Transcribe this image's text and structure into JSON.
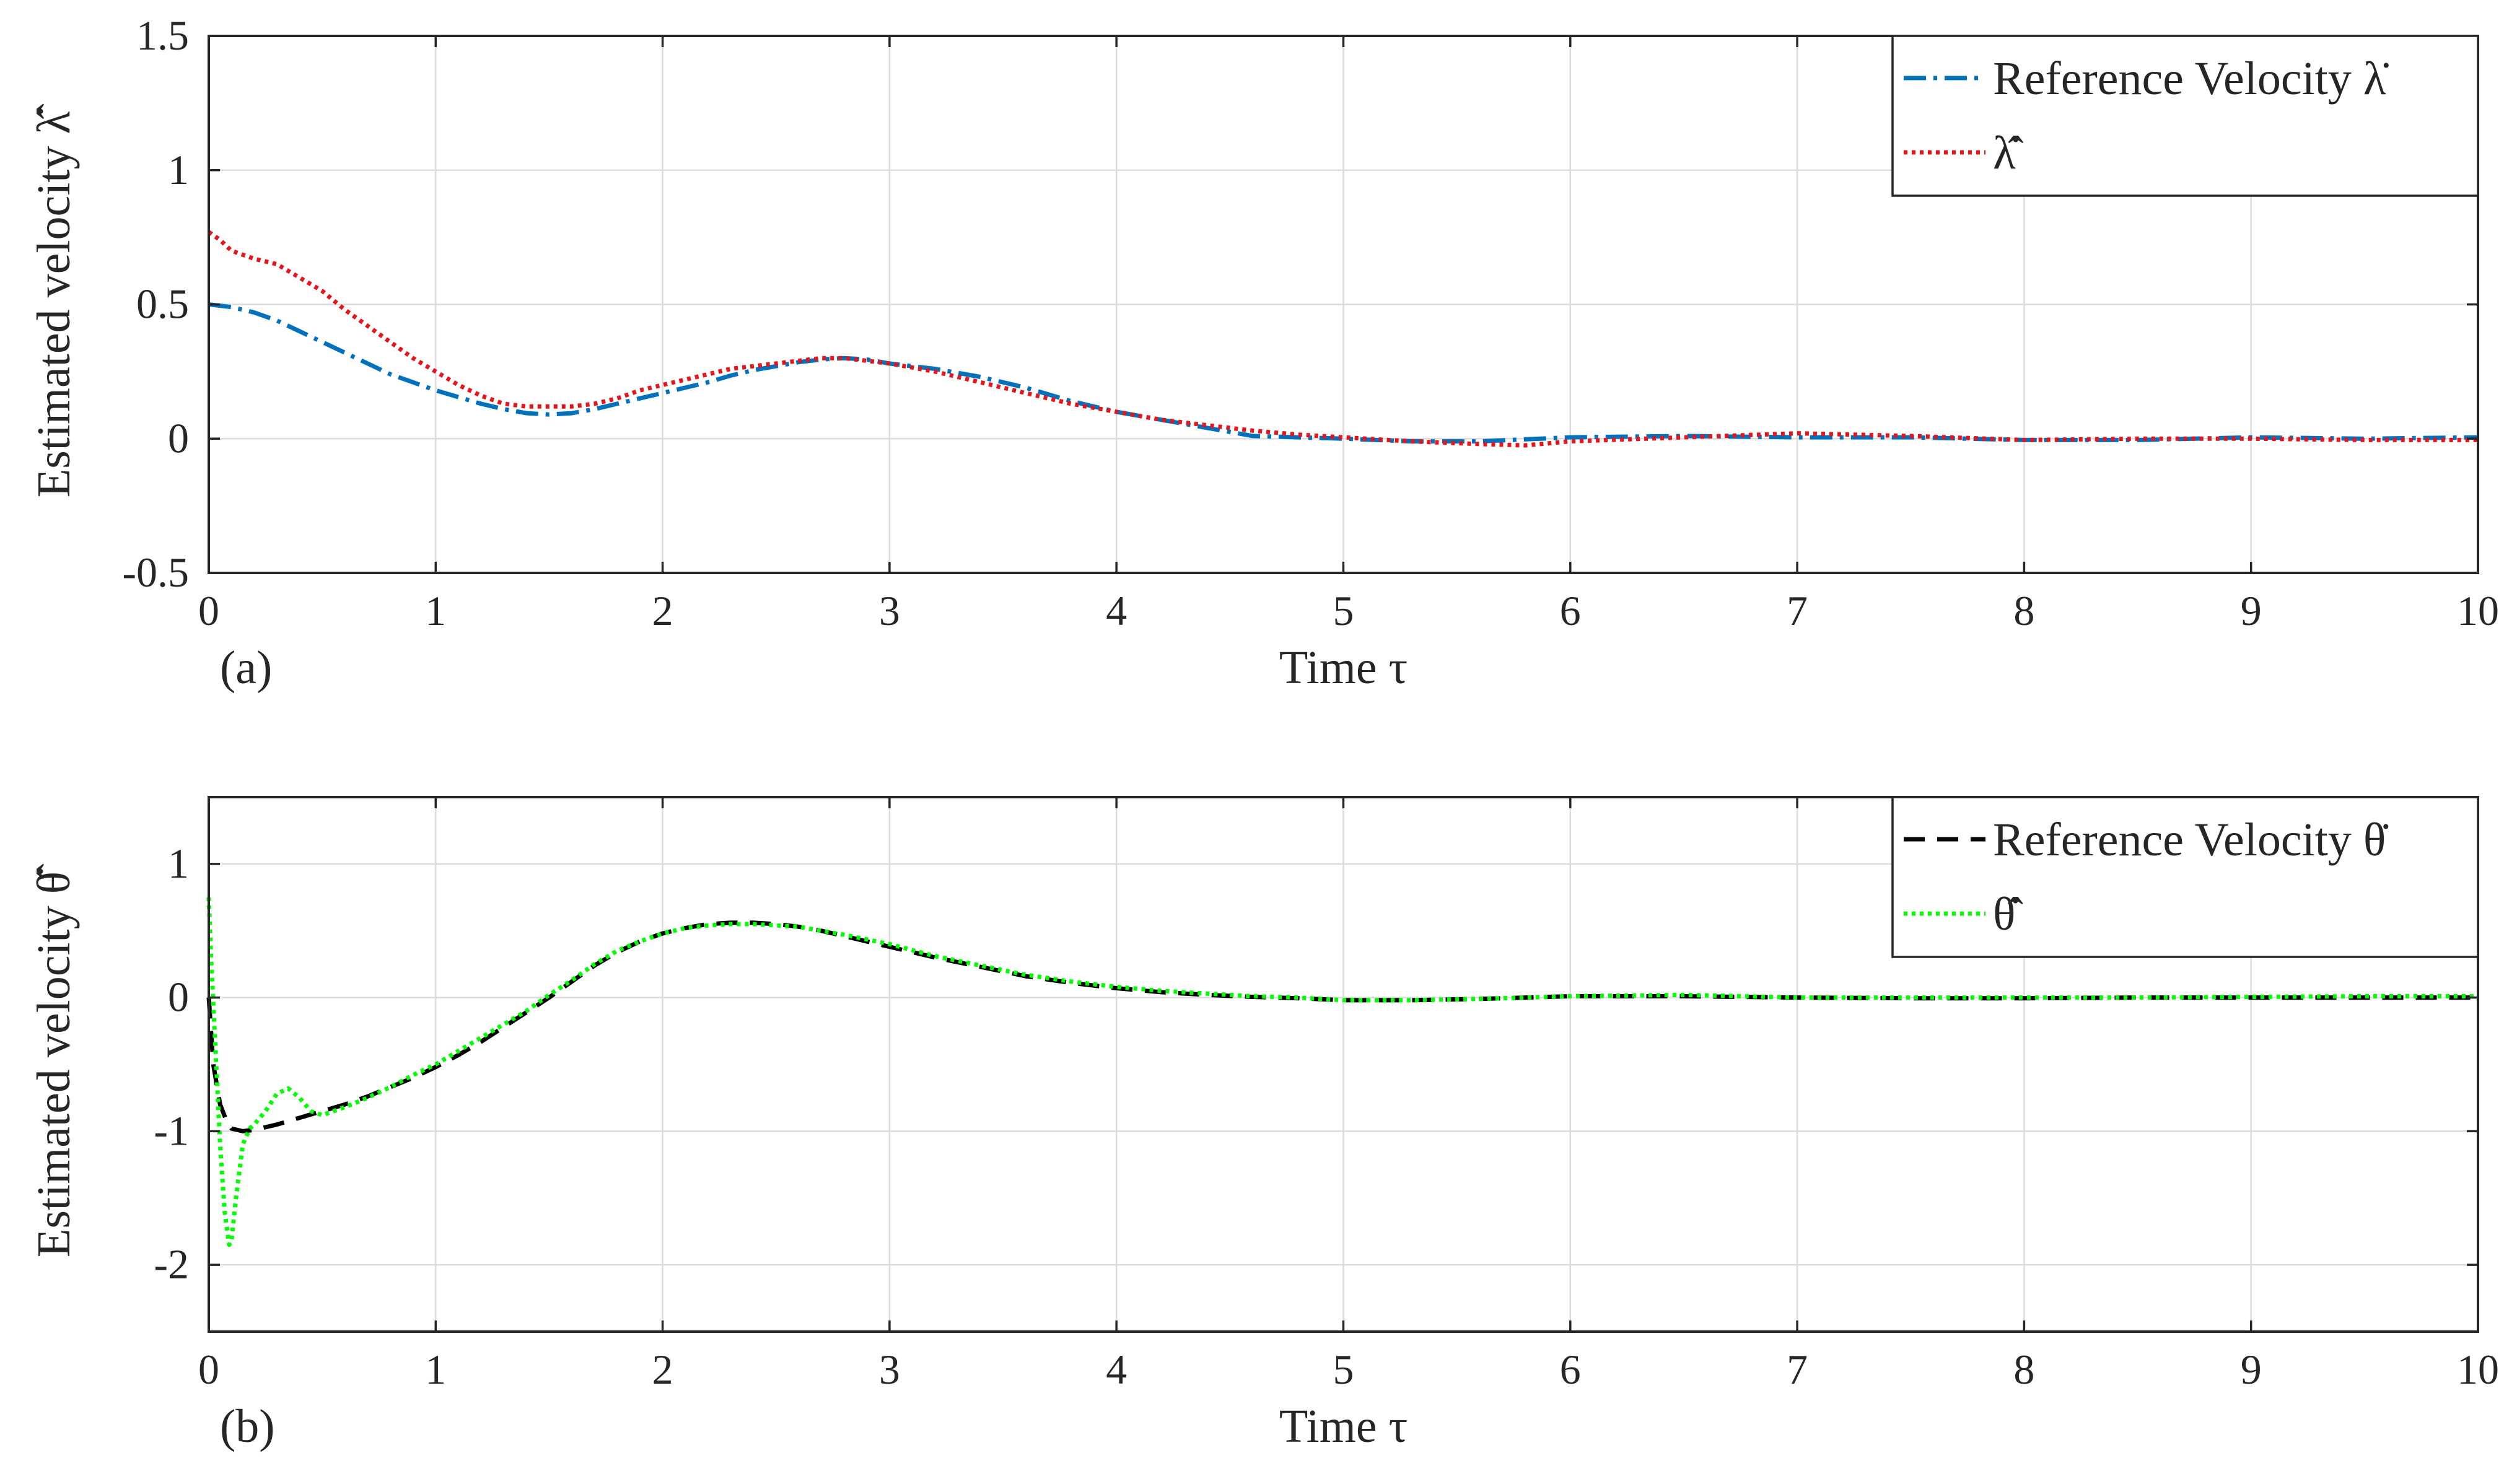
{
  "chart_data": [
    {
      "type": "line",
      "panel_label": "(a)",
      "xlabel": "Time τ",
      "ylabel": "Estimated velocity λ̂̇",
      "xlim": [
        0,
        10
      ],
      "ylim": [
        -0.5,
        1.5
      ],
      "xticks": [
        0,
        1,
        2,
        3,
        4,
        5,
        6,
        7,
        8,
        9,
        10
      ],
      "yticks": [
        -0.5,
        0,
        0.5,
        1,
        1.5
      ],
      "ytick_labels": [
        "-0.5",
        "0",
        "0.5",
        "1",
        "1.5"
      ],
      "grid": true,
      "legend_position": "top-right",
      "series": [
        {
          "name": "Reference Velocity λ̇",
          "color": "#0072BD",
          "line_style": "dash-dot",
          "x": [
            0,
            0.1,
            0.2,
            0.3,
            0.4,
            0.5,
            0.6,
            0.7,
            0.8,
            0.9,
            1.0,
            1.1,
            1.2,
            1.3,
            1.4,
            1.5,
            1.6,
            1.7,
            1.8,
            1.9,
            2.0,
            2.1,
            2.2,
            2.3,
            2.4,
            2.5,
            2.6,
            2.7,
            2.8,
            2.9,
            3.0,
            3.2,
            3.4,
            3.6,
            3.8,
            4.0,
            4.2,
            4.4,
            4.6,
            4.8,
            5.0,
            5.3,
            5.6,
            6.0,
            6.5,
            7.0,
            7.5,
            8.0,
            8.5,
            9.0,
            9.5,
            10.0
          ],
          "y": [
            0.5,
            0.49,
            0.47,
            0.44,
            0.4,
            0.36,
            0.32,
            0.28,
            0.24,
            0.21,
            0.18,
            0.155,
            0.13,
            0.11,
            0.095,
            0.09,
            0.095,
            0.11,
            0.13,
            0.15,
            0.17,
            0.19,
            0.21,
            0.235,
            0.255,
            0.27,
            0.285,
            0.295,
            0.3,
            0.295,
            0.28,
            0.26,
            0.23,
            0.19,
            0.14,
            0.1,
            0.07,
            0.04,
            0.01,
            0.005,
            0.0,
            -0.01,
            -0.01,
            0.005,
            0.01,
            0.005,
            0.005,
            -0.005,
            -0.005,
            0.005,
            0.0,
            0.005
          ]
        },
        {
          "name": "λ̂̇",
          "color": "#E8141C",
          "line_style": "dotted",
          "x": [
            0,
            0.05,
            0.1,
            0.2,
            0.3,
            0.4,
            0.5,
            0.6,
            0.7,
            0.8,
            0.9,
            1.0,
            1.1,
            1.2,
            1.3,
            1.4,
            1.5,
            1.6,
            1.7,
            1.8,
            1.9,
            2.0,
            2.1,
            2.2,
            2.3,
            2.4,
            2.5,
            2.6,
            2.7,
            2.8,
            2.9,
            3.0,
            3.2,
            3.4,
            3.6,
            3.8,
            4.0,
            4.2,
            4.4,
            4.6,
            4.8,
            5.0,
            5.3,
            5.6,
            5.8,
            6.0,
            6.5,
            7.0,
            7.5,
            8.0,
            8.5,
            9.0,
            9.5,
            10.0
          ],
          "y": [
            0.77,
            0.74,
            0.7,
            0.67,
            0.65,
            0.6,
            0.55,
            0.48,
            0.42,
            0.36,
            0.3,
            0.25,
            0.2,
            0.16,
            0.13,
            0.12,
            0.12,
            0.12,
            0.13,
            0.15,
            0.18,
            0.2,
            0.22,
            0.24,
            0.26,
            0.27,
            0.28,
            0.29,
            0.3,
            0.3,
            0.29,
            0.28,
            0.25,
            0.21,
            0.17,
            0.13,
            0.1,
            0.07,
            0.05,
            0.03,
            0.015,
            0.005,
            -0.01,
            -0.02,
            -0.025,
            -0.01,
            0.005,
            0.02,
            0.01,
            -0.005,
            0.0,
            0.0,
            -0.005,
            -0.005
          ]
        }
      ]
    },
    {
      "type": "line",
      "panel_label": "(b)",
      "xlabel": "Time τ",
      "ylabel": "Estimated velocity θ̂̇",
      "xlim": [
        0,
        10
      ],
      "ylim": [
        -2.5,
        1.5
      ],
      "xticks": [
        0,
        1,
        2,
        3,
        4,
        5,
        6,
        7,
        8,
        9,
        10
      ],
      "yticks": [
        -2,
        -1,
        0,
        1
      ],
      "ytick_labels": [
        "-2",
        "-1",
        "0",
        "1"
      ],
      "grid": true,
      "legend_position": "top-right",
      "series": [
        {
          "name": "Reference Velocity θ̇",
          "color": "#000000",
          "line_style": "dashed",
          "x": [
            0,
            0.02,
            0.05,
            0.08,
            0.1,
            0.15,
            0.2,
            0.3,
            0.4,
            0.5,
            0.6,
            0.7,
            0.8,
            0.9,
            1.0,
            1.1,
            1.2,
            1.3,
            1.4,
            1.5,
            1.6,
            1.7,
            1.8,
            1.9,
            2.0,
            2.1,
            2.2,
            2.3,
            2.4,
            2.5,
            2.6,
            2.7,
            2.8,
            3.0,
            3.2,
            3.4,
            3.6,
            3.8,
            4.0,
            4.2,
            4.4,
            4.6,
            4.8,
            5.0,
            5.3,
            5.6,
            6.0,
            6.5,
            7.0,
            7.5,
            8.0,
            8.5,
            9.0,
            9.5,
            10.0
          ],
          "y": [
            0.0,
            -0.5,
            -0.8,
            -0.93,
            -0.98,
            -1.0,
            -0.99,
            -0.95,
            -0.9,
            -0.85,
            -0.8,
            -0.74,
            -0.67,
            -0.6,
            -0.52,
            -0.43,
            -0.33,
            -0.22,
            -0.11,
            0.0,
            0.12,
            0.24,
            0.34,
            0.42,
            0.48,
            0.52,
            0.55,
            0.56,
            0.56,
            0.55,
            0.53,
            0.5,
            0.46,
            0.38,
            0.3,
            0.23,
            0.16,
            0.11,
            0.07,
            0.04,
            0.02,
            0.005,
            -0.005,
            -0.02,
            -0.02,
            -0.01,
            0.01,
            0.01,
            0.0,
            -0.005,
            -0.005,
            0.0,
            0.0,
            0.0,
            0.0
          ]
        },
        {
          "name": "θ̂̇",
          "color": "#00FF00",
          "line_style": "dotted",
          "x": [
            0,
            0.01,
            0.03,
            0.05,
            0.07,
            0.09,
            0.1,
            0.12,
            0.15,
            0.18,
            0.2,
            0.25,
            0.3,
            0.35,
            0.4,
            0.45,
            0.5,
            0.6,
            0.7,
            0.8,
            0.9,
            1.0,
            1.1,
            1.2,
            1.3,
            1.4,
            1.5,
            1.6,
            1.7,
            1.8,
            1.9,
            2.0,
            2.1,
            2.2,
            2.3,
            2.4,
            2.5,
            2.6,
            2.7,
            2.8,
            3.0,
            3.2,
            3.4,
            3.6,
            3.8,
            4.0,
            4.2,
            4.4,
            4.6,
            4.8,
            5.0,
            5.3,
            5.6,
            6.0,
            6.5,
            7.0,
            7.5,
            8.0,
            8.5,
            9.0,
            9.5,
            10.0
          ],
          "y": [
            0.75,
            0.3,
            -0.4,
            -1.1,
            -1.6,
            -1.85,
            -1.82,
            -1.5,
            -1.1,
            -0.98,
            -0.95,
            -0.85,
            -0.72,
            -0.68,
            -0.75,
            -0.85,
            -0.88,
            -0.82,
            -0.75,
            -0.67,
            -0.58,
            -0.5,
            -0.4,
            -0.3,
            -0.2,
            -0.1,
            0.02,
            0.13,
            0.25,
            0.35,
            0.42,
            0.48,
            0.52,
            0.54,
            0.55,
            0.55,
            0.54,
            0.53,
            0.5,
            0.47,
            0.4,
            0.31,
            0.24,
            0.17,
            0.12,
            0.08,
            0.05,
            0.03,
            0.01,
            0.0,
            -0.02,
            -0.02,
            -0.01,
            0.01,
            0.02,
            0.0,
            0.0,
            0.0,
            0.0,
            0.005,
            0.01,
            0.01
          ]
        }
      ]
    }
  ]
}
